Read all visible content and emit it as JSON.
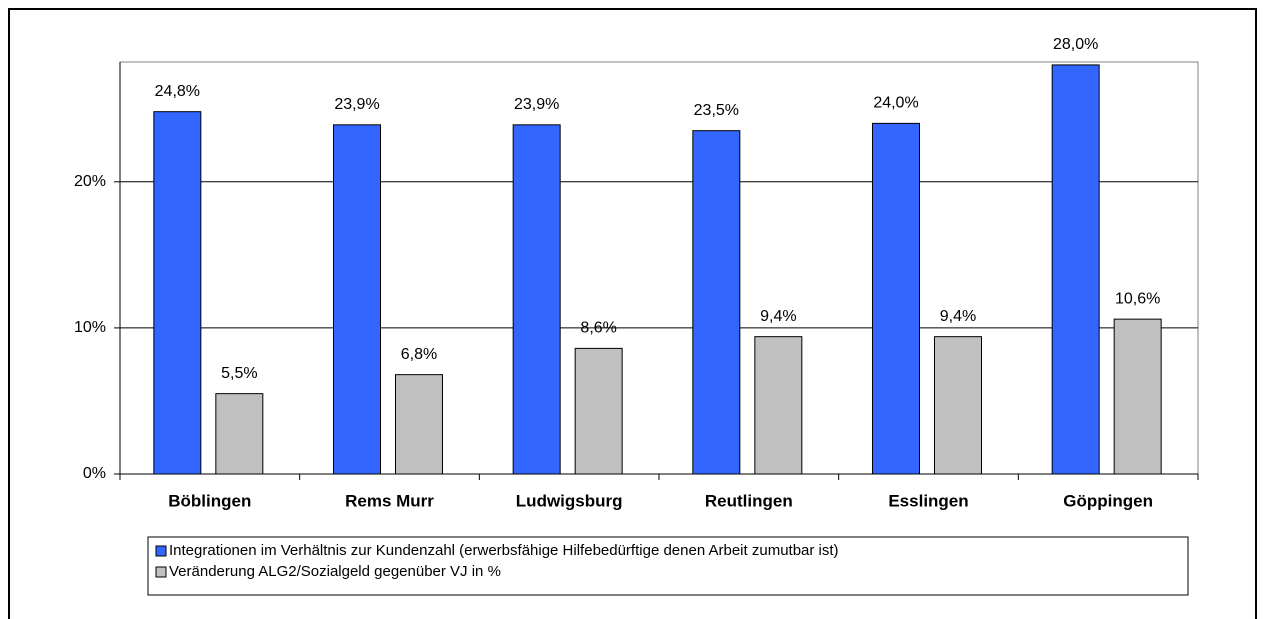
{
  "chart_data": {
    "type": "bar",
    "categories": [
      "Böblingen",
      "Rems Murr",
      "Ludwigsburg",
      "Reutlingen",
      "Esslingen",
      "Göppingen"
    ],
    "series": [
      {
        "name": "Integrationen im Verhältnis zur Kundenzahl (erwerbsfähige Hilfebedürftige denen Arbeit zumutbar ist)",
        "color": "#3366ff",
        "values": [
          24.8,
          23.9,
          23.9,
          23.5,
          24.0,
          28.0
        ],
        "value_labels": [
          "24,8%",
          "23,9%",
          "23,9%",
          "23,5%",
          "24,0%",
          "28,0%"
        ]
      },
      {
        "name": "Veränderung ALG2/Sozialgeld gegenüber VJ in %",
        "color": "#c0c0c0",
        "values": [
          5.5,
          6.8,
          8.6,
          9.4,
          9.4,
          10.6
        ],
        "value_labels": [
          "5,5%",
          "6,8%",
          "8,6%",
          "9,4%",
          "9,4%",
          "10,6%"
        ]
      }
    ],
    "ylim": [
      0,
      28.2
    ],
    "yticks": [
      {
        "value": 0,
        "label": "0%"
      },
      {
        "value": 10,
        "label": "10%"
      },
      {
        "value": 20,
        "label": "20%"
      }
    ],
    "grid": true
  }
}
